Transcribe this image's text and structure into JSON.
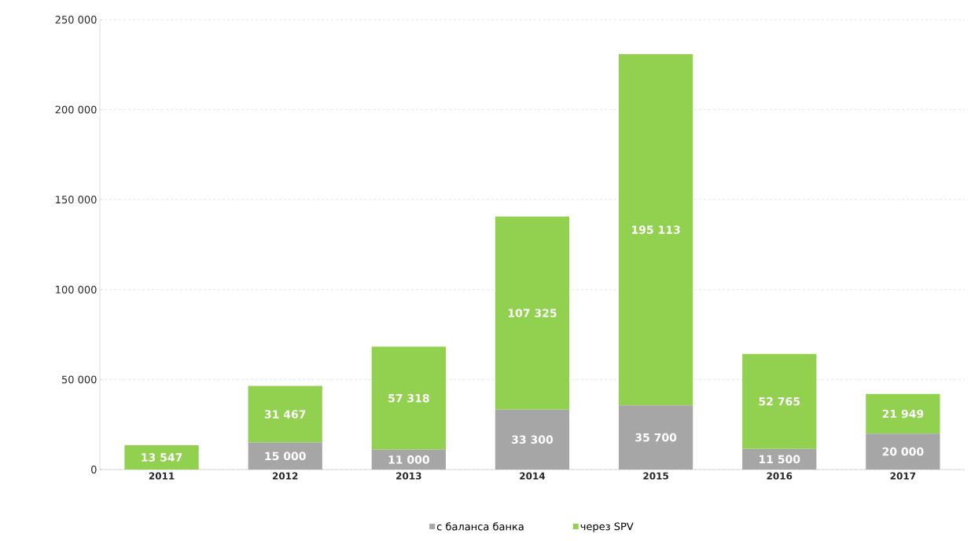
{
  "chart_data": {
    "type": "bar",
    "stacked": true,
    "categories": [
      "2011",
      "2012",
      "2013",
      "2014",
      "2015",
      "2016",
      "2017"
    ],
    "series": [
      {
        "name": "с баланса банка",
        "color": "#a6a6a6",
        "values": [
          0,
          15000,
          11000,
          33300,
          35700,
          11500,
          20000
        ],
        "value_labels": [
          null,
          "15 000",
          "11 000",
          "33 300",
          "35 700",
          "11 500",
          "20 000"
        ]
      },
      {
        "name": "через SPV",
        "color": "#92d050",
        "values": [
          13547,
          31467,
          57318,
          107325,
          195113,
          52765,
          21949
        ],
        "value_labels": [
          "13 547",
          "31 467",
          "57 318",
          "107 325",
          "195 113",
          "52 765",
          "21 949"
        ]
      }
    ],
    "ylim": [
      0,
      250000
    ],
    "yticks": [
      {
        "value": 0,
        "label": "0"
      },
      {
        "value": 50000,
        "label": "50 000"
      },
      {
        "value": 100000,
        "label": "100 000"
      },
      {
        "value": 150000,
        "label": "150 000"
      },
      {
        "value": 200000,
        "label": "200 000"
      },
      {
        "value": 250000,
        "label": "250 000"
      }
    ],
    "grid": "y",
    "legend": "bottom"
  }
}
